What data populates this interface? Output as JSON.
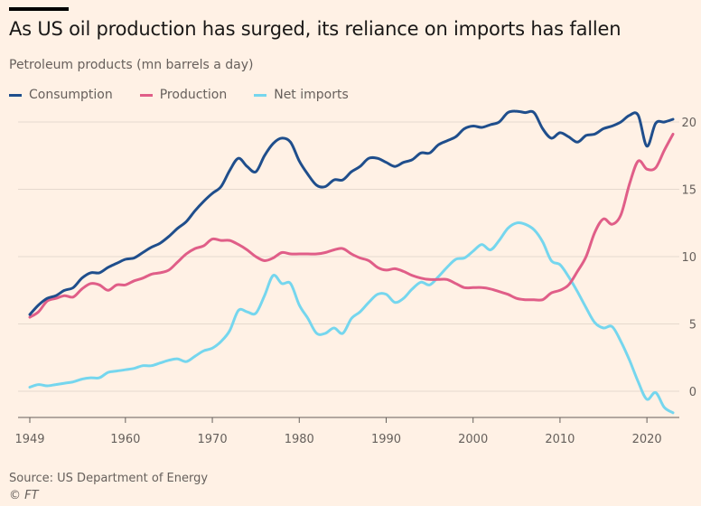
{
  "header": {
    "title": "As US oil production has surged, its reliance on imports has fallen",
    "subtitle": "Petroleum products (mn barrels a day)"
  },
  "footer": {
    "source": "Source: US Department of Energy",
    "copyright": "© FT"
  },
  "chart_data": {
    "type": "line",
    "title": "As US oil production has surged, its reliance on imports has fallen",
    "subtitle": "Petroleum products (mn barrels a day)",
    "xlabel": "",
    "ylabel": "",
    "xlim": [
      1949,
      2023
    ],
    "ylim": [
      -2,
      21
    ],
    "y_ticks": [
      0,
      5,
      10,
      15,
      20
    ],
    "y_tick_labels": [
      "0",
      "5",
      "10",
      "15",
      "20"
    ],
    "x_ticks": [
      1949,
      1960,
      1970,
      1980,
      1990,
      2000,
      2010,
      2020
    ],
    "x_tick_labels": [
      "1949",
      "1960",
      "1970",
      "1980",
      "1990",
      "2000",
      "2010",
      "2020"
    ],
    "grid": "horizontal",
    "y_axis_side": "right",
    "legend_position": "top-left",
    "x": [
      1949,
      1950,
      1951,
      1952,
      1953,
      1954,
      1955,
      1956,
      1957,
      1958,
      1959,
      1960,
      1961,
      1962,
      1963,
      1964,
      1965,
      1966,
      1967,
      1968,
      1969,
      1970,
      1971,
      1972,
      1973,
      1974,
      1975,
      1976,
      1977,
      1978,
      1979,
      1980,
      1981,
      1982,
      1983,
      1984,
      1985,
      1986,
      1987,
      1988,
      1989,
      1990,
      1991,
      1992,
      1993,
      1994,
      1995,
      1996,
      1997,
      1998,
      1999,
      2000,
      2001,
      2002,
      2003,
      2004,
      2005,
      2006,
      2007,
      2008,
      2009,
      2010,
      2011,
      2012,
      2013,
      2014,
      2015,
      2016,
      2017,
      2018,
      2019,
      2020,
      2021,
      2022,
      2023
    ],
    "series": [
      {
        "name": "Consumption",
        "color": "#1F4E8C",
        "values": [
          5.7,
          6.4,
          6.9,
          7.1,
          7.5,
          7.7,
          8.4,
          8.8,
          8.8,
          9.2,
          9.5,
          9.8,
          9.9,
          10.3,
          10.7,
          11.0,
          11.5,
          12.1,
          12.6,
          13.4,
          14.1,
          14.7,
          15.2,
          16.4,
          17.3,
          16.7,
          16.3,
          17.5,
          18.4,
          18.8,
          18.5,
          17.1,
          16.1,
          15.3,
          15.2,
          15.7,
          15.7,
          16.3,
          16.7,
          17.3,
          17.3,
          17.0,
          16.7,
          17.0,
          17.2,
          17.7,
          17.7,
          18.3,
          18.6,
          18.9,
          19.5,
          19.7,
          19.6,
          19.8,
          20.0,
          20.7,
          20.8,
          20.7,
          20.7,
          19.5,
          18.8,
          19.2,
          18.9,
          18.5,
          19.0,
          19.1,
          19.5,
          19.7,
          20.0,
          20.5,
          20.5,
          18.2,
          19.9,
          20.0,
          20.2
        ]
      },
      {
        "name": "Production",
        "color": "#E05E88",
        "values": [
          5.5,
          5.9,
          6.7,
          6.9,
          7.1,
          7.0,
          7.6,
          8.0,
          7.9,
          7.5,
          7.9,
          7.9,
          8.2,
          8.4,
          8.7,
          8.8,
          9.0,
          9.6,
          10.2,
          10.6,
          10.8,
          11.3,
          11.2,
          11.2,
          10.9,
          10.5,
          10.0,
          9.7,
          9.9,
          10.3,
          10.2,
          10.2,
          10.2,
          10.2,
          10.3,
          10.5,
          10.6,
          10.2,
          9.9,
          9.7,
          9.2,
          9.0,
          9.1,
          8.9,
          8.6,
          8.4,
          8.3,
          8.3,
          8.3,
          8.0,
          7.7,
          7.7,
          7.7,
          7.6,
          7.4,
          7.2,
          6.9,
          6.8,
          6.8,
          6.8,
          7.3,
          7.5,
          7.9,
          8.9,
          10.0,
          11.8,
          12.8,
          12.4,
          13.1,
          15.4,
          17.1,
          16.5,
          16.6,
          17.9,
          19.1
        ]
      },
      {
        "name": "Net imports",
        "color": "#75D6EE",
        "values": [
          0.3,
          0.5,
          0.4,
          0.5,
          0.6,
          0.7,
          0.9,
          1.0,
          1.0,
          1.4,
          1.5,
          1.6,
          1.7,
          1.9,
          1.9,
          2.1,
          2.3,
          2.4,
          2.2,
          2.6,
          3.0,
          3.2,
          3.7,
          4.5,
          6.0,
          5.9,
          5.8,
          7.1,
          8.6,
          8.0,
          8.0,
          6.4,
          5.4,
          4.3,
          4.3,
          4.7,
          4.3,
          5.4,
          5.9,
          6.6,
          7.2,
          7.2,
          6.6,
          6.9,
          7.6,
          8.1,
          7.9,
          8.5,
          9.2,
          9.8,
          9.9,
          10.4,
          10.9,
          10.5,
          11.2,
          12.1,
          12.5,
          12.4,
          12.0,
          11.1,
          9.7,
          9.4,
          8.5,
          7.4,
          6.2,
          5.1,
          4.7,
          4.8,
          3.7,
          2.3,
          0.7,
          -0.6,
          -0.1,
          -1.2,
          -1.6
        ]
      }
    ]
  }
}
